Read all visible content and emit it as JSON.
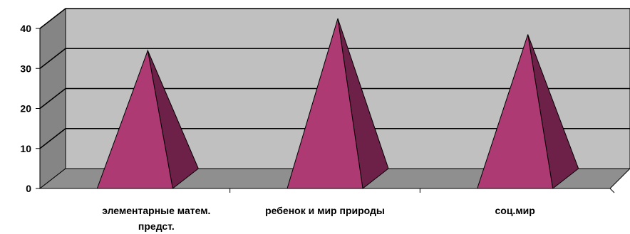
{
  "chart_data": {
    "type": "bar",
    "subtype": "3d-pyramid",
    "title": "",
    "xlabel": "",
    "ylabel": "",
    "categories": [
      [
        "элементарные матем.",
        "предст."
      ],
      [
        "ребенок и мир природы"
      ],
      [
        "соц.мир"
      ]
    ],
    "values": [
      32,
      40,
      36
    ],
    "ylim": [
      0,
      40
    ],
    "yticks": [
      "0",
      "10",
      "20",
      "30",
      "40"
    ],
    "grid": true,
    "legend": "none",
    "colors": {
      "front": "#ad3a72",
      "side": "#6e2148",
      "wall": "#c0c0c0",
      "side_wall": "#858585",
      "floor": "#8f8f8f",
      "grid": "#000000"
    }
  }
}
